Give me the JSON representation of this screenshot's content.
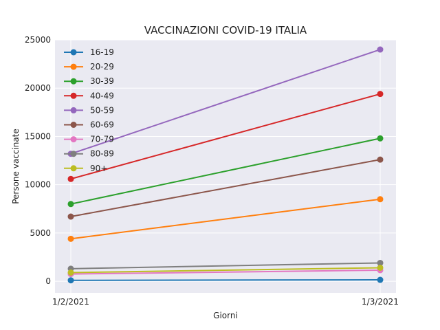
{
  "chart_data": {
    "type": "line",
    "title": "VACCINAZIONI COVID-19 ITALIA",
    "xlabel": "Giorni",
    "ylabel": "Persone vaccinate",
    "categories": [
      "1/2/2021",
      "1/3/2021"
    ],
    "ylim": [
      -1200,
      25000
    ],
    "yticks": [
      0,
      5000,
      10000,
      15000,
      20000,
      25000
    ],
    "ytick_labels": [
      "0",
      "5000",
      "10000",
      "15000",
      "20000",
      "25000"
    ],
    "grid": true,
    "legend_position": "top-left",
    "background": "#eaeaf2",
    "series": [
      {
        "name": "16-19",
        "color": "#1f77b4",
        "values": [
          100,
          150
        ]
      },
      {
        "name": "20-29",
        "color": "#ff7f0e",
        "values": [
          4400,
          8500
        ]
      },
      {
        "name": "30-39",
        "color": "#2ca02c",
        "values": [
          8000,
          14800
        ]
      },
      {
        "name": "40-49",
        "color": "#d62728",
        "values": [
          10600,
          19400
        ]
      },
      {
        "name": "50-59",
        "color": "#9467bd",
        "values": [
          13200,
          24000
        ]
      },
      {
        "name": "60-69",
        "color": "#8c564b",
        "values": [
          6700,
          12600
        ]
      },
      {
        "name": "70-79",
        "color": "#e377c2",
        "values": [
          750,
          1150
        ]
      },
      {
        "name": "80-89",
        "color": "#7f7f7f",
        "values": [
          1300,
          1900
        ]
      },
      {
        "name": "90+",
        "color": "#bcbd22",
        "values": [
          900,
          1400
        ]
      }
    ]
  }
}
